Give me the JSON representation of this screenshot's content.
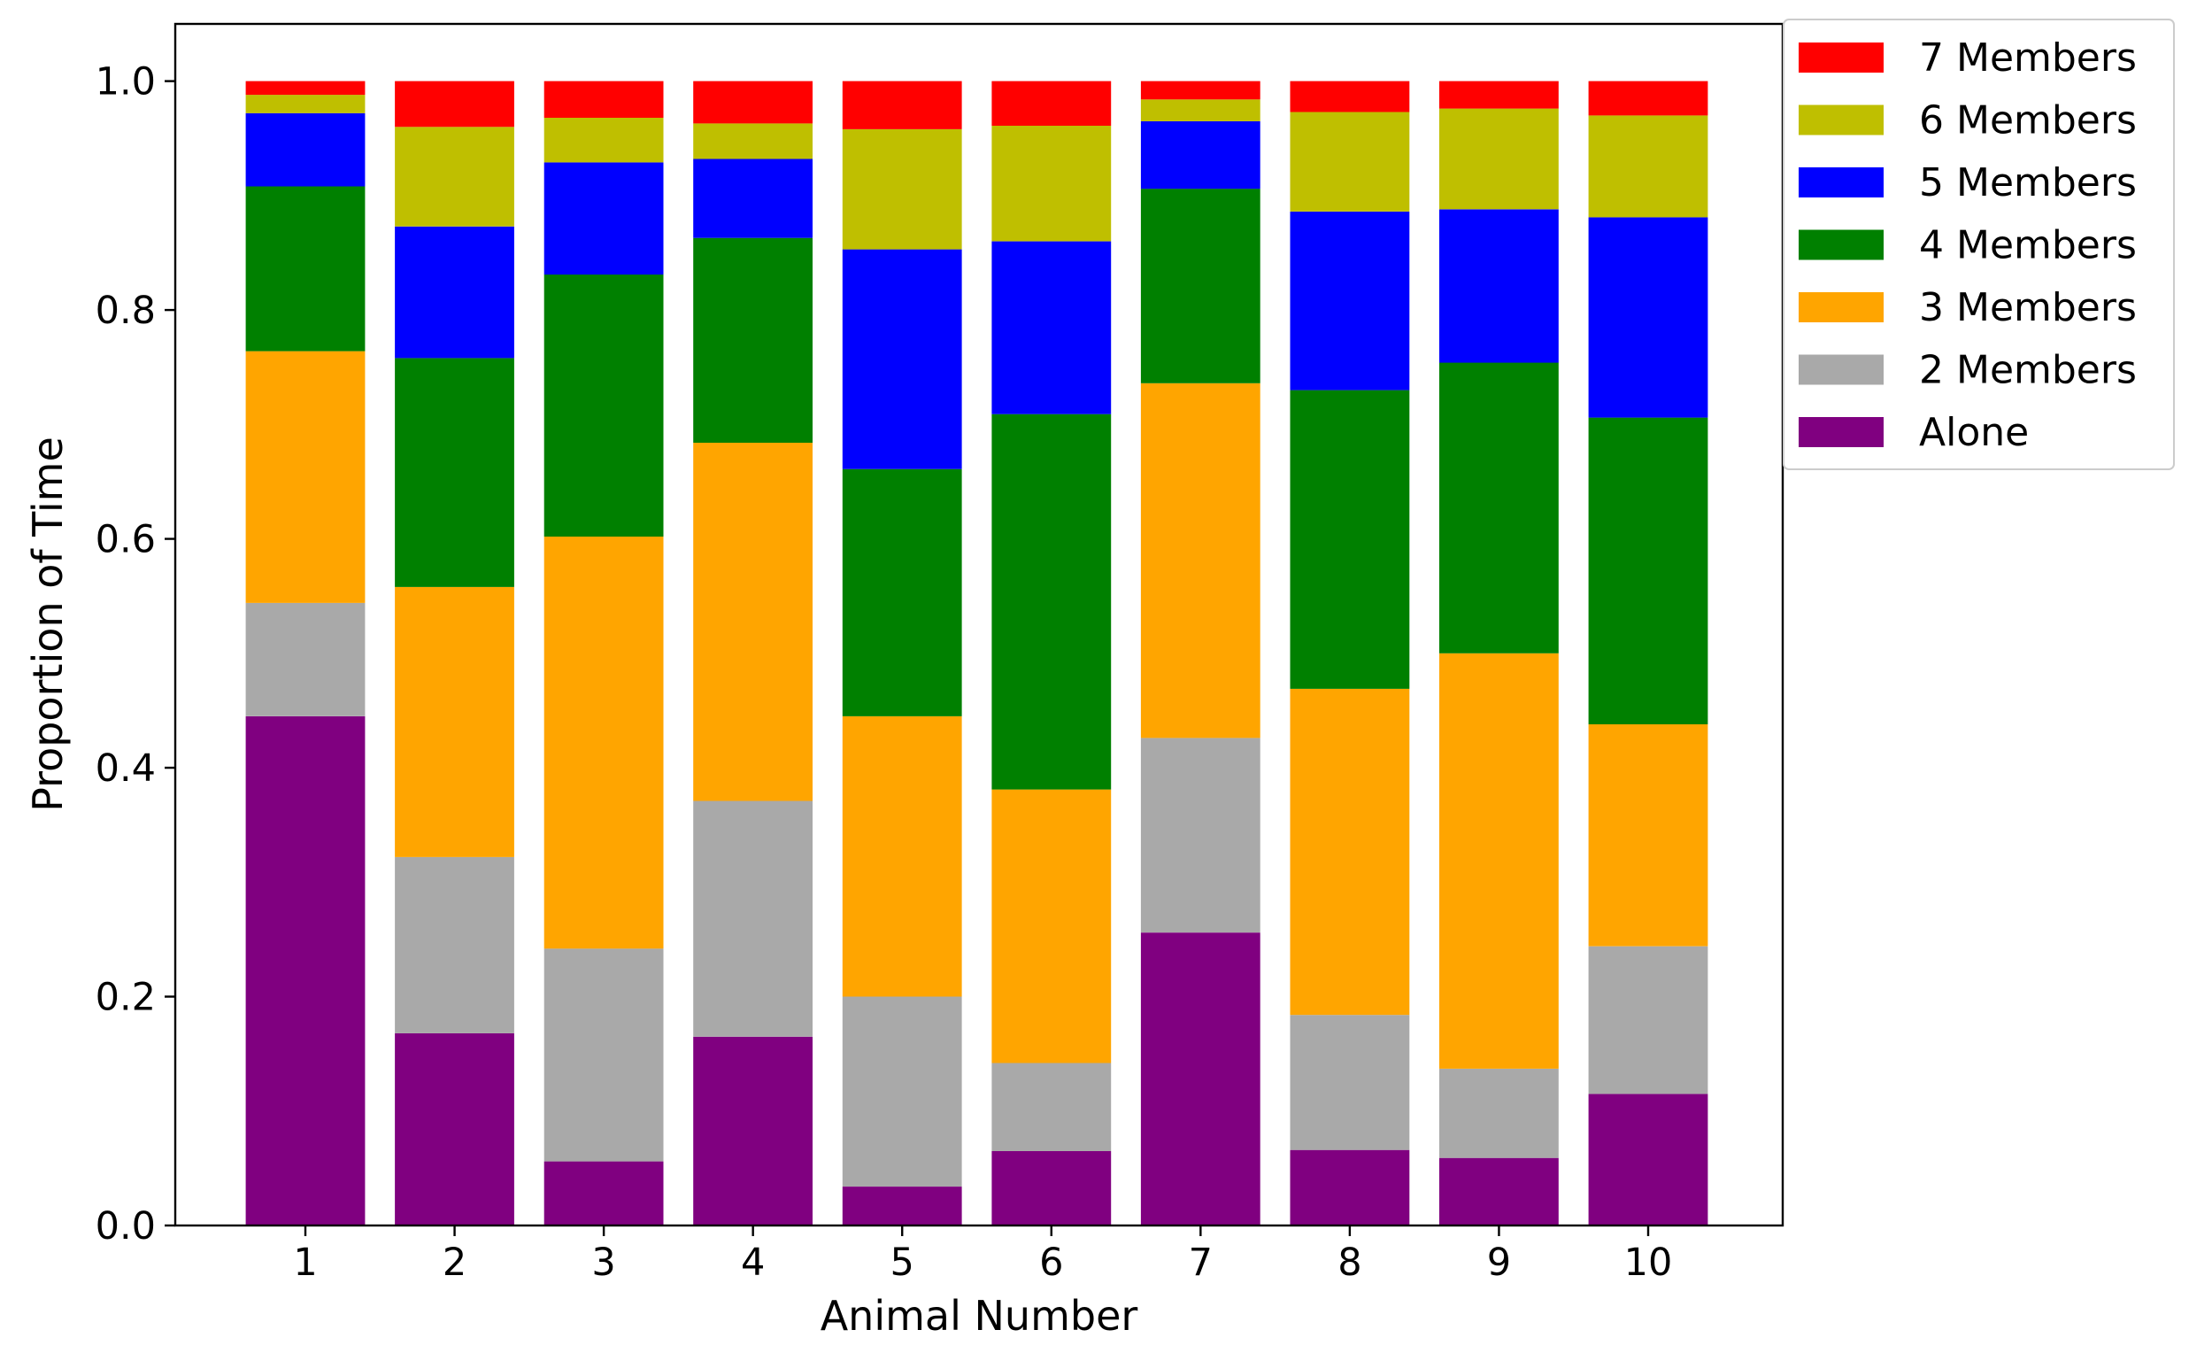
{
  "chart_data": {
    "type": "bar",
    "stacked": true,
    "title": "",
    "xlabel": "Animal Number",
    "ylabel": "Proportion of Time",
    "ylim": [
      0.0,
      1.05
    ],
    "yticks": [
      "0.0",
      "0.2",
      "0.4",
      "0.6",
      "0.8",
      "1.0"
    ],
    "ytick_values": [
      0.0,
      0.2,
      0.4,
      0.6,
      0.8,
      1.0
    ],
    "categories": [
      "1",
      "2",
      "3",
      "4",
      "5",
      "6",
      "7",
      "8",
      "9",
      "10"
    ],
    "grid": false,
    "legend_position": "outside-top-right",
    "series": [
      {
        "name": "Alone",
        "color": "#800080",
        "values": [
          0.445,
          0.168,
          0.056,
          0.165,
          0.034,
          0.065,
          0.256,
          0.066,
          0.059,
          0.115
        ]
      },
      {
        "name": "2 Members",
        "color": "#a9a9a9",
        "values": [
          0.099,
          0.154,
          0.186,
          0.206,
          0.166,
          0.077,
          0.17,
          0.118,
          0.078,
          0.129
        ]
      },
      {
        "name": "3 Members",
        "color": "#ffa500",
        "values": [
          0.22,
          0.236,
          0.36,
          0.313,
          0.245,
          0.239,
          0.31,
          0.285,
          0.363,
          0.194
        ]
      },
      {
        "name": "4 Members",
        "color": "#008000",
        "values": [
          0.144,
          0.2,
          0.229,
          0.179,
          0.216,
          0.328,
          0.17,
          0.261,
          0.254,
          0.268
        ]
      },
      {
        "name": "5 Members",
        "color": "#0000ff",
        "values": [
          0.064,
          0.115,
          0.098,
          0.069,
          0.192,
          0.151,
          0.059,
          0.156,
          0.134,
          0.175
        ]
      },
      {
        "name": "6 Members",
        "color": "#bfbf00",
        "values": [
          0.016,
          0.087,
          0.039,
          0.031,
          0.105,
          0.101,
          0.019,
          0.087,
          0.088,
          0.089
        ]
      },
      {
        "name": "7 Members",
        "color": "#ff0000",
        "values": [
          0.012,
          0.04,
          0.032,
          0.037,
          0.042,
          0.039,
          0.016,
          0.027,
          0.024,
          0.03
        ]
      }
    ]
  }
}
